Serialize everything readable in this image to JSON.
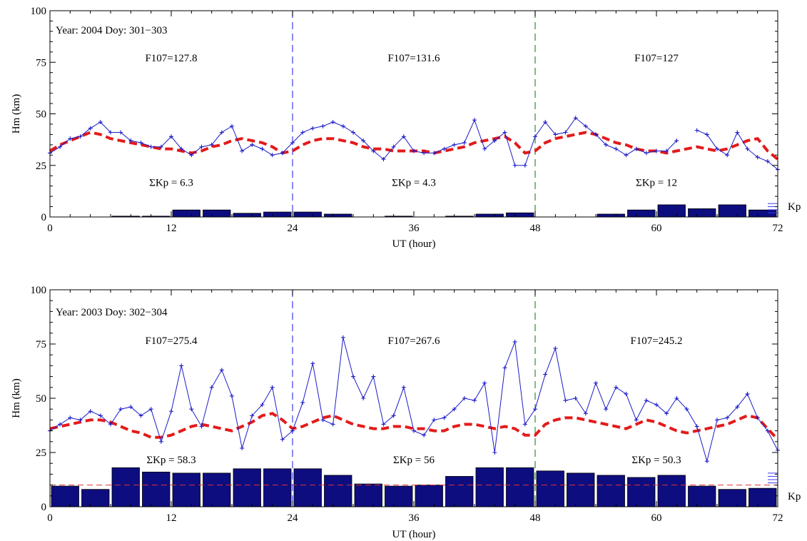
{
  "chart_data": [
    {
      "type": "line",
      "xlabel": "UT (hour)",
      "ylabel": "Hm (km)",
      "xlim": [
        0,
        72
      ],
      "ylim": [
        0,
        100
      ],
      "xticks": [
        0,
        12,
        24,
        36,
        48,
        60,
        72
      ],
      "yticks": [
        0,
        25,
        50,
        75,
        100
      ],
      "title_text": "Year: 2004  Doy: 301−303",
      "day_dividers": [
        {
          "x": 24,
          "color": "#3c3cf0"
        },
        {
          "x": 48,
          "color": "#2e8b2e"
        }
      ],
      "f107_labels": [
        {
          "text": "F107=127.8",
          "x": 12
        },
        {
          "text": "F107=131.6",
          "x": 36
        },
        {
          "text": "F107=127",
          "x": 60
        }
      ],
      "kp_sum_labels": [
        {
          "text": "ΣKp = 6.3",
          "x": 12,
          "y": 15
        },
        {
          "text": "ΣKp = 4.3",
          "x": 36,
          "y": 15
        },
        {
          "text": "ΣKp = 12",
          "x": 60,
          "y": 15
        }
      ],
      "kp_label": "Kp",
      "kp_ref_line": null,
      "kp_bars": [
        0,
        0,
        0.4,
        0.4,
        3.4,
        3.4,
        1.8,
        2.4,
        2.4,
        1.4,
        0,
        0.4,
        0,
        0.4,
        1.4,
        2,
        0,
        0,
        1.4,
        3.4,
        5.9,
        4,
        5.9,
        3.4
      ],
      "series": [
        {
          "kind": "observed",
          "color": "#1c1cc8",
          "x": [
            0,
            1,
            2,
            3,
            4,
            5,
            6,
            7,
            8,
            9,
            10,
            11,
            12,
            13,
            14,
            15,
            16,
            17,
            18,
            19,
            20,
            21,
            22,
            23,
            24,
            25,
            26,
            27,
            28,
            29,
            30,
            31,
            32,
            33,
            34,
            35,
            36,
            37,
            38,
            39,
            40,
            41,
            42,
            43,
            44,
            45,
            46,
            47,
            48,
            49,
            50,
            51,
            52,
            53,
            54,
            55,
            56,
            57,
            58,
            59,
            60,
            61,
            62,
            63,
            64,
            65,
            66,
            67,
            68,
            69,
            70,
            71,
            72
          ],
          "y": [
            31,
            34,
            38,
            39,
            43,
            46,
            41,
            41,
            37,
            36,
            34,
            34,
            39,
            33,
            30,
            34,
            35,
            41,
            44,
            32,
            35,
            33,
            30,
            31,
            36,
            41,
            43,
            44,
            46,
            44,
            41,
            37,
            32,
            28,
            34,
            39,
            32,
            31,
            31,
            33,
            35,
            36,
            47,
            33,
            37,
            41,
            25,
            25,
            39,
            46,
            40,
            41,
            48,
            44,
            40,
            35,
            33,
            30,
            33,
            31,
            32,
            32,
            37,
            null,
            42,
            40,
            33,
            30,
            41,
            33,
            29,
            27,
            23
          ]
        },
        {
          "kind": "model",
          "color": "#e41a1a",
          "x": [
            0,
            1,
            2,
            3,
            4,
            5,
            6,
            7,
            8,
            9,
            10,
            11,
            12,
            13,
            14,
            15,
            16,
            17,
            18,
            19,
            20,
            21,
            22,
            23,
            24,
            25,
            26,
            27,
            28,
            29,
            30,
            31,
            32,
            33,
            34,
            35,
            36,
            37,
            38,
            39,
            40,
            41,
            42,
            43,
            44,
            45,
            46,
            47,
            48,
            49,
            50,
            51,
            52,
            53,
            54,
            55,
            56,
            57,
            58,
            59,
            60,
            61,
            62,
            63,
            64,
            65,
            66,
            67,
            68,
            69,
            70,
            71,
            72
          ],
          "y": [
            32,
            35,
            37,
            39,
            41,
            40,
            38,
            37,
            36,
            35,
            34,
            33,
            33,
            32,
            31,
            32,
            34,
            35,
            37,
            38,
            37,
            36,
            34,
            31,
            32,
            35,
            37,
            38,
            38,
            37,
            36,
            34,
            33,
            33,
            32,
            32,
            32,
            32,
            31,
            32,
            33,
            34,
            36,
            37,
            38,
            39,
            36,
            31,
            32,
            36,
            38,
            39,
            40,
            41,
            40,
            38,
            36,
            35,
            33,
            32,
            32,
            31,
            32,
            33,
            34,
            33,
            32,
            33,
            35,
            37,
            38,
            32,
            28
          ]
        }
      ]
    },
    {
      "type": "line",
      "xlabel": "UT (hour)",
      "ylabel": "Hm (km)",
      "xlim": [
        0,
        72
      ],
      "ylim": [
        0,
        100
      ],
      "xticks": [
        0,
        12,
        24,
        36,
        48,
        60,
        72
      ],
      "yticks": [
        0,
        25,
        50,
        75,
        100
      ],
      "title_text": "Year: 2003  Doy: 302−304",
      "day_dividers": [
        {
          "x": 24,
          "color": "#3c3cf0"
        },
        {
          "x": 48,
          "color": "#2e8b2e"
        }
      ],
      "f107_labels": [
        {
          "text": "F107=275.4",
          "x": 12
        },
        {
          "text": "F107=267.6",
          "x": 36
        },
        {
          "text": "F107=245.2",
          "x": 60
        }
      ],
      "kp_sum_labels": [
        {
          "text": "ΣKp = 58.3",
          "x": 12,
          "y": 20
        },
        {
          "text": "ΣKp = 56",
          "x": 36,
          "y": 20
        },
        {
          "text": "ΣKp = 50.3",
          "x": 60,
          "y": 20
        }
      ],
      "kp_label": "Kp",
      "kp_ref_line": 10,
      "kp_bars": [
        9.5,
        8,
        18,
        16,
        15.5,
        15.5,
        17.5,
        17.5,
        17.5,
        14.5,
        10.5,
        9.5,
        10,
        14,
        18,
        18,
        16.5,
        15.5,
        14.5,
        13.5,
        14.5,
        9.5,
        8,
        8.5
      ],
      "series": [
        {
          "kind": "observed",
          "color": "#1c1cc8",
          "x": [
            0,
            1,
            2,
            3,
            4,
            5,
            6,
            7,
            8,
            9,
            10,
            11,
            12,
            13,
            14,
            15,
            16,
            17,
            18,
            19,
            20,
            21,
            22,
            23,
            24,
            25,
            26,
            27,
            28,
            29,
            30,
            31,
            32,
            33,
            34,
            35,
            36,
            37,
            38,
            39,
            40,
            41,
            42,
            43,
            44,
            45,
            46,
            47,
            48,
            49,
            50,
            51,
            52,
            53,
            54,
            55,
            56,
            57,
            58,
            59,
            60,
            61,
            62,
            63,
            64,
            65,
            66,
            67,
            68,
            69,
            70,
            71,
            72
          ],
          "y": [
            35,
            38,
            41,
            40,
            44,
            42,
            38,
            45,
            46,
            42,
            45,
            30,
            44,
            65,
            45,
            37,
            55,
            63,
            51,
            27,
            42,
            47,
            55,
            31,
            35,
            48,
            66,
            40,
            38,
            78,
            60,
            50,
            60,
            38,
            42,
            55,
            35,
            33,
            40,
            41,
            45,
            50,
            49,
            57,
            25,
            64,
            76,
            38,
            45,
            61,
            73,
            49,
            50,
            43,
            57,
            45,
            55,
            52,
            40,
            49,
            47,
            43,
            50,
            45,
            37,
            21,
            40,
            41,
            46,
            52,
            41,
            35,
            26
          ]
        },
        {
          "kind": "model",
          "color": "#e41a1a",
          "x": [
            0,
            1,
            2,
            3,
            4,
            5,
            6,
            7,
            8,
            9,
            10,
            11,
            12,
            13,
            14,
            15,
            16,
            17,
            18,
            19,
            20,
            21,
            22,
            23,
            24,
            25,
            26,
            27,
            28,
            29,
            30,
            31,
            32,
            33,
            34,
            35,
            36,
            37,
            38,
            39,
            40,
            41,
            42,
            43,
            44,
            45,
            46,
            47,
            48,
            49,
            50,
            51,
            52,
            53,
            54,
            55,
            56,
            57,
            58,
            59,
            60,
            61,
            62,
            63,
            64,
            65,
            66,
            67,
            68,
            69,
            70,
            71,
            72
          ],
          "y": [
            36,
            37,
            38,
            39,
            40,
            40,
            39,
            37,
            35,
            34,
            32,
            32,
            33,
            35,
            37,
            38,
            37,
            36,
            35,
            37,
            39,
            42,
            43,
            40,
            36,
            37,
            39,
            41,
            42,
            40,
            38,
            37,
            36,
            36,
            37,
            37,
            36,
            36,
            35,
            35,
            37,
            38,
            38,
            37,
            36,
            37,
            36,
            33,
            33,
            38,
            40,
            41,
            41,
            40,
            39,
            38,
            37,
            36,
            38,
            40,
            39,
            37,
            35,
            34,
            35,
            36,
            37,
            38,
            40,
            42,
            41,
            36,
            31
          ]
        }
      ]
    }
  ]
}
